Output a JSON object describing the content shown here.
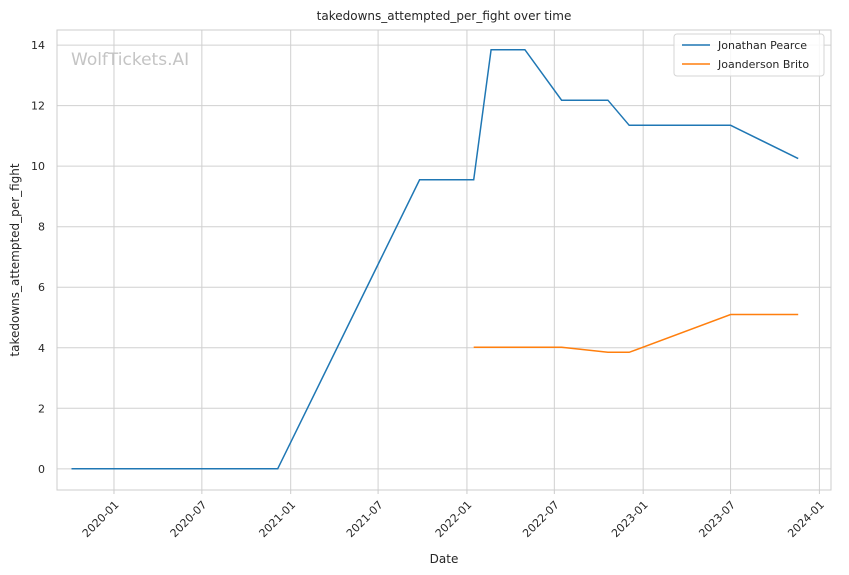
{
  "chart_data": {
    "type": "line",
    "title": "takedowns_attempted_per_fight over time",
    "xlabel": "Date",
    "ylabel": "takedowns_attempted_per_fight",
    "watermark": "WolfTickets.AI",
    "xlim": [
      "2019-09-05",
      "2024-01-25"
    ],
    "ylim": [
      -0.7,
      14.5
    ],
    "grid": true,
    "legend_position": "top-right",
    "x_ticks": [
      {
        "date": "2020-01-01",
        "label": "2020-01"
      },
      {
        "date": "2020-07-01",
        "label": "2020-07"
      },
      {
        "date": "2021-01-01",
        "label": "2021-01"
      },
      {
        "date": "2021-07-01",
        "label": "2021-07"
      },
      {
        "date": "2022-01-01",
        "label": "2022-01"
      },
      {
        "date": "2022-07-01",
        "label": "2022-07"
      },
      {
        "date": "2023-01-01",
        "label": "2023-01"
      },
      {
        "date": "2023-07-01",
        "label": "2023-07"
      },
      {
        "date": "2024-01-01",
        "label": "2024-01"
      }
    ],
    "y_ticks": [
      0,
      2,
      4,
      6,
      8,
      10,
      12,
      14
    ],
    "series": [
      {
        "name": "Jonathan Pearce",
        "color": "#1f77b4",
        "points": [
          {
            "x": "2019-10-05",
            "y": 0
          },
          {
            "x": "2020-12-05",
            "y": 0
          },
          {
            "x": "2021-09-25",
            "y": 9.55
          },
          {
            "x": "2022-01-15",
            "y": 9.55
          },
          {
            "x": "2022-02-20",
            "y": 13.85
          },
          {
            "x": "2022-05-01",
            "y": 13.85
          },
          {
            "x": "2022-07-16",
            "y": 12.18
          },
          {
            "x": "2022-10-20",
            "y": 12.18
          },
          {
            "x": "2022-12-03",
            "y": 11.35
          },
          {
            "x": "2023-07-01",
            "y": 11.35
          },
          {
            "x": "2023-11-18",
            "y": 10.25
          }
        ]
      },
      {
        "name": "Joanderson Brito",
        "color": "#ff7f0e",
        "points": [
          {
            "x": "2022-01-15",
            "y": 4.02
          },
          {
            "x": "2022-07-16",
            "y": 4.02
          },
          {
            "x": "2022-10-20",
            "y": 3.85
          },
          {
            "x": "2022-12-03",
            "y": 3.85
          },
          {
            "x": "2023-07-01",
            "y": 5.1
          },
          {
            "x": "2023-11-18",
            "y": 5.1
          }
        ]
      }
    ]
  }
}
